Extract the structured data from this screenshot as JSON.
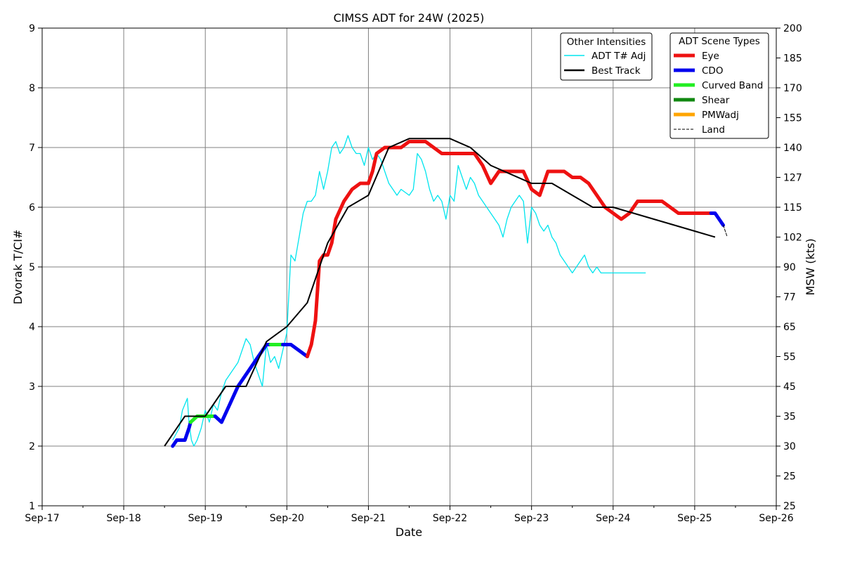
{
  "chart_data": {
    "type": "line",
    "title": "CIMSS ADT for 24W (2025)",
    "xlabel": "Date",
    "ylabel": "Dvorak T/CI#",
    "ylabel_right": "MSW (kts)",
    "x_ticks": [
      "Sep-17",
      "Sep-18",
      "Sep-19",
      "Sep-20",
      "Sep-21",
      "Sep-22",
      "Sep-23",
      "Sep-24",
      "Sep-25",
      "Sep-26"
    ],
    "xlim": [
      0,
      9
    ],
    "ylim": [
      1,
      9
    ],
    "y_ticks": [
      "1",
      "2",
      "3",
      "4",
      "5",
      "6",
      "7",
      "8",
      "9"
    ],
    "right_ticks": [
      {
        "t": 1,
        "label": "25"
      },
      {
        "t": 1.5,
        "label": "25"
      },
      {
        "t": 2,
        "label": "30"
      },
      {
        "t": 2.5,
        "label": "35"
      },
      {
        "t": 3,
        "label": "45"
      },
      {
        "t": 3.5,
        "label": "55"
      },
      {
        "t": 4,
        "label": "65"
      },
      {
        "t": 4.5,
        "label": "77"
      },
      {
        "t": 5,
        "label": "90"
      },
      {
        "t": 5.5,
        "label": "102"
      },
      {
        "t": 6,
        "label": "115"
      },
      {
        "t": 6.5,
        "label": "127"
      },
      {
        "t": 7,
        "label": "140"
      },
      {
        "t": 7.5,
        "label": "155"
      },
      {
        "t": 8,
        "label": "170"
      },
      {
        "t": 8.5,
        "label": "185"
      },
      {
        "t": 9,
        "label": "200"
      }
    ],
    "grid": true,
    "legend_other": {
      "title": "Other Intensities",
      "placement": "top-right",
      "items": [
        {
          "label": "ADT T# Adj",
          "color": "#00e5ee"
        },
        {
          "label": "Best Track",
          "color": "#000000"
        }
      ]
    },
    "legend_scene": {
      "title": "ADT Scene Types",
      "placement": "top-right",
      "items": [
        {
          "label": "Eye",
          "color": "#ee1111"
        },
        {
          "label": "CDO",
          "color": "#0000ee"
        },
        {
          "label": "Curved Band",
          "color": "#22ee22"
        },
        {
          "label": "Shear",
          "color": "#118811"
        },
        {
          "label": "PMWadj",
          "color": "#ffa500"
        },
        {
          "label": "Land",
          "color": "#000000",
          "dashed": true
        }
      ]
    },
    "best_track": {
      "name": "Best Track",
      "x": [
        1.5,
        1.75,
        2.0,
        2.25,
        2.5,
        2.75,
        3.0,
        3.25,
        3.5,
        3.75,
        4.0,
        4.25,
        4.5,
        4.75,
        5.0,
        5.25,
        5.5,
        6.0,
        6.25,
        6.5,
        6.75,
        7.0,
        7.25,
        7.5,
        7.75,
        8.0,
        8.25
      ],
      "y": [
        2.0,
        2.5,
        2.5,
        3.0,
        3.0,
        3.75,
        4.0,
        4.4,
        5.4,
        6.0,
        6.2,
        7.0,
        7.15,
        7.15,
        7.15,
        7.0,
        6.7,
        6.4,
        6.4,
        6.2,
        6.0,
        6.0,
        5.9,
        5.8,
        5.7,
        5.6,
        5.5
      ]
    },
    "adt_tadj": {
      "name": "ADT T# Adj",
      "x": [
        1.6,
        1.68,
        1.72,
        1.78,
        1.8,
        1.83,
        1.86,
        1.9,
        1.95,
        2.0,
        2.05,
        2.1,
        2.15,
        2.2,
        2.25,
        2.3,
        2.35,
        2.4,
        2.45,
        2.5,
        2.55,
        2.6,
        2.7,
        2.75,
        2.8,
        2.85,
        2.9,
        2.95,
        3.0,
        3.05,
        3.1,
        3.15,
        3.2,
        3.25,
        3.3,
        3.35,
        3.4,
        3.45,
        3.5,
        3.55,
        3.6,
        3.65,
        3.7,
        3.75,
        3.8,
        3.85,
        3.9,
        3.95,
        4.0,
        4.05,
        4.1,
        4.15,
        4.2,
        4.25,
        4.3,
        4.35,
        4.4,
        4.5,
        4.55,
        4.6,
        4.65,
        4.7,
        4.75,
        4.8,
        4.85,
        4.9,
        4.95,
        5.0,
        5.05,
        5.1,
        5.15,
        5.2,
        5.25,
        5.3,
        5.35,
        5.4,
        5.45,
        5.5,
        5.55,
        5.6,
        5.65,
        5.7,
        5.75,
        5.8,
        5.85,
        5.9,
        5.95,
        6.0,
        6.05,
        6.1,
        6.15,
        6.2,
        6.25,
        6.3,
        6.35,
        6.4,
        6.45,
        6.5,
        6.55,
        6.6,
        6.65,
        6.7,
        6.75,
        6.8,
        6.85,
        6.9,
        6.95,
        7.0,
        7.05,
        7.1,
        7.15,
        7.2,
        7.25,
        7.3,
        7.35,
        7.4
      ],
      "y": [
        2.1,
        2.3,
        2.6,
        2.8,
        2.4,
        2.1,
        2.0,
        2.1,
        2.3,
        2.6,
        2.4,
        2.7,
        2.6,
        2.9,
        3.1,
        3.2,
        3.3,
        3.4,
        3.6,
        3.8,
        3.7,
        3.4,
        3.0,
        3.7,
        3.4,
        3.5,
        3.3,
        3.6,
        3.9,
        5.2,
        5.1,
        5.5,
        5.9,
        6.1,
        6.1,
        6.2,
        6.6,
        6.3,
        6.6,
        7.0,
        7.1,
        6.9,
        7.0,
        7.2,
        7.0,
        6.9,
        6.9,
        6.7,
        7.0,
        6.8,
        6.9,
        6.8,
        6.6,
        6.4,
        6.3,
        6.2,
        6.3,
        6.2,
        6.3,
        6.9,
        6.8,
        6.6,
        6.3,
        6.1,
        6.2,
        6.1,
        5.8,
        6.2,
        6.1,
        6.7,
        6.5,
        6.3,
        6.5,
        6.4,
        6.2,
        6.1,
        6.0,
        5.9,
        5.8,
        5.7,
        5.5,
        5.8,
        6.0,
        6.1,
        6.2,
        6.1,
        5.4,
        6.0,
        5.9,
        5.7,
        5.6,
        5.7,
        5.5,
        5.4,
        5.2,
        5.1,
        5.0,
        4.9,
        5.0,
        5.1,
        5.2,
        5.0,
        4.9,
        5.0,
        4.9,
        4.9,
        4.9,
        4.9,
        4.9,
        4.9,
        4.9,
        4.9,
        4.9,
        4.9,
        4.9,
        4.9
      ]
    },
    "scene_segments": [
      {
        "scene": "CDO",
        "x": [
          1.6,
          1.65,
          1.75,
          1.8,
          1.82
        ],
        "y": [
          2.0,
          2.1,
          2.1,
          2.3,
          2.4
        ]
      },
      {
        "scene": "Curved Band",
        "x": [
          1.82,
          1.9,
          2.0,
          2.1,
          2.12
        ],
        "y": [
          2.4,
          2.5,
          2.5,
          2.5,
          2.5
        ]
      },
      {
        "scene": "CDO",
        "x": [
          2.12,
          2.2,
          2.3,
          2.4,
          2.5,
          2.6,
          2.7,
          2.75,
          2.8
        ],
        "y": [
          2.5,
          2.4,
          2.7,
          3.0,
          3.2,
          3.4,
          3.6,
          3.7,
          3.7
        ]
      },
      {
        "scene": "Curved Band",
        "x": [
          2.8,
          2.95
        ],
        "y": [
          3.7,
          3.7
        ]
      },
      {
        "scene": "CDO",
        "x": [
          2.95,
          3.05,
          3.15,
          3.25
        ],
        "y": [
          3.7,
          3.7,
          3.6,
          3.5
        ]
      },
      {
        "scene": "Eye",
        "x": [
          3.25,
          3.3,
          3.35,
          3.4,
          3.45,
          3.5,
          3.55,
          3.6,
          3.7,
          3.8,
          3.9,
          4.0,
          4.05,
          4.1,
          4.2,
          4.3,
          4.4,
          4.5,
          4.55,
          4.6,
          4.7,
          4.8,
          4.9,
          5.0,
          5.05,
          5.1,
          5.15,
          5.2,
          5.3,
          5.4,
          5.5,
          5.6,
          5.7,
          5.75,
          5.8,
          5.9,
          6.0,
          6.1,
          6.2,
          6.25,
          6.3,
          6.4,
          6.5,
          6.6,
          6.7,
          6.8,
          6.9,
          7.0,
          7.1,
          7.2,
          7.3,
          7.4,
          7.5,
          7.6,
          7.7,
          7.8,
          7.9,
          8.0,
          8.1,
          8.2
        ],
        "y": [
          3.5,
          3.7,
          4.1,
          5.1,
          5.2,
          5.2,
          5.4,
          5.8,
          6.1,
          6.3,
          6.4,
          6.4,
          6.6,
          6.9,
          7.0,
          7.0,
          7.0,
          7.1,
          7.1,
          7.1,
          7.1,
          7.0,
          6.9,
          6.9,
          6.9,
          6.9,
          6.9,
          6.9,
          6.9,
          6.7,
          6.4,
          6.6,
          6.6,
          6.6,
          6.6,
          6.6,
          6.3,
          6.2,
          6.6,
          6.6,
          6.6,
          6.6,
          6.5,
          6.5,
          6.4,
          6.2,
          6.0,
          5.9,
          5.8,
          5.9,
          6.1,
          6.1,
          6.1,
          6.1,
          6.0,
          5.9,
          5.9,
          5.9,
          5.9,
          5.9
        ]
      },
      {
        "scene": "CDO",
        "x": [
          8.2,
          8.25,
          8.3,
          8.35
        ],
        "y": [
          5.9,
          5.9,
          5.8,
          5.7
        ]
      },
      {
        "scene": "Land",
        "x": [
          8.35,
          8.4
        ],
        "y": [
          5.7,
          5.5
        ]
      }
    ]
  }
}
